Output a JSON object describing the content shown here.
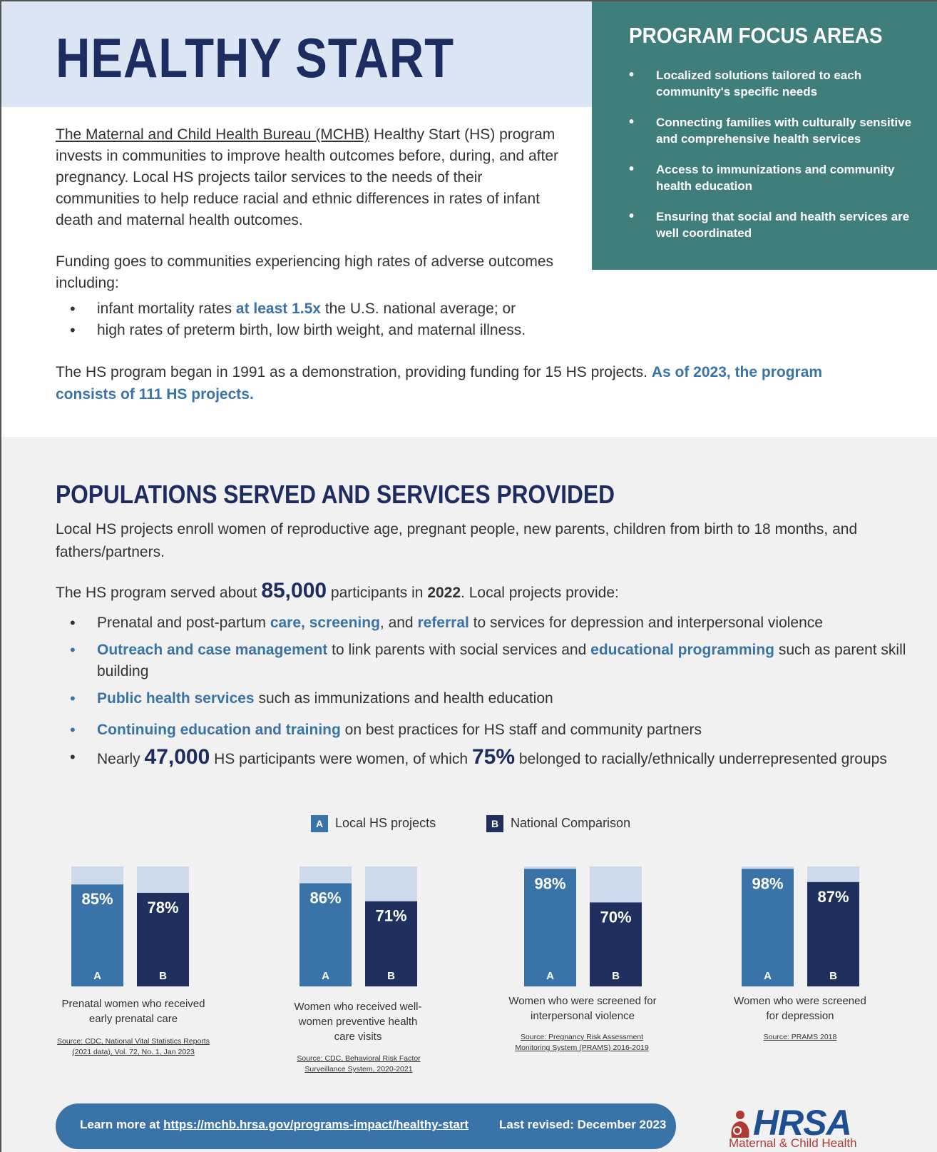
{
  "header": {
    "title": "HEALTHY START"
  },
  "focus_areas": {
    "title": "PROGRAM FOCUS AREAS",
    "items": [
      "Localized solutions tailored to each community's specific needs",
      "Connecting families with culturally sensitive and comprehensive health services",
      "Access to immunizations and community health education",
      "Ensuring that social and health services are well coordinated"
    ]
  },
  "intro": {
    "link_text": "The Maternal and Child Health Bureau (MCHB)",
    "text": " Healthy Start (HS) program invests in communities to improve health outcomes before, during, and after pregnancy. Local HS projects tailor services to the needs of their communities to help reduce racial and ethnic differences in rates of infant death and maternal health outcomes."
  },
  "funding": {
    "text": "Funding goes to communities experiencing high rates of adverse outcomes including:",
    "bullet1_pre": "infant mortality rates ",
    "bullet1_hl": "at least 1.5x",
    "bullet1_post": " the U.S. national average; or",
    "bullet2": "high rates of preterm birth, low birth weight, and maternal illness."
  },
  "history": {
    "text": "The HS program began in 1991 as a demonstration, providing funding for 15 HS projects. ",
    "highlight": "As of 2023, the program consists of 111 HS projects."
  },
  "populations": {
    "title": "POPULATIONS SERVED AND SERVICES PROVIDED",
    "enroll": "Local HS projects enroll women of reproductive age, pregnant people, new parents, children from birth to 18 months, and fathers/partners.",
    "served_pre": "The HS program served about ",
    "served_num": "85,000",
    "served_mid": " participants in ",
    "served_year": "2022",
    "served_post": ". Local projects provide:",
    "s1_pre": "Prenatal and post-partum ",
    "s1_hl1": "care, screening",
    "s1_mid": ", and ",
    "s1_hl2": "referral",
    "s1_post": " to services for depression and interpersonal violence",
    "s2_hl1": "Outreach and case management",
    "s2_mid": " to link parents with social services and ",
    "s2_hl2": "educational programming",
    "s2_post": " such as parent skill building",
    "s3_hl": "Public health services",
    "s3_post": " such as immunizations and health education",
    "s4_hl": "Continuing education and training",
    "s4_post": " on best practices for HS staff and community partners",
    "s5_pre": "Nearly ",
    "s5_num1": "47,000",
    "s5_mid": " HS participants were women, of which ",
    "s5_num2": "75%",
    "s5_post": " belonged to racially/ethnically underrepresented groups"
  },
  "legend": {
    "a_letter": "A",
    "a_label": "Local HS projects",
    "b_letter": "B",
    "b_label": "National Comparison"
  },
  "chart_data": {
    "type": "bar",
    "title": "",
    "xlabel": "",
    "ylabel": "",
    "ylim": [
      0,
      100
    ],
    "series_names": [
      "Local HS projects",
      "National Comparison"
    ],
    "series_letters": [
      "A",
      "B"
    ],
    "colors": {
      "a": "#3a73a8",
      "b": "#1f2f5e",
      "track": "#ccdaeb"
    },
    "groups": [
      {
        "label": "Prenatal women who received early prenatal care",
        "values": [
          85,
          78
        ],
        "source": "Source: CDC, National Vital Statistics Reports (2021 data), Vol. 72, No. 1, Jan 2023"
      },
      {
        "label": "Women who received well-women preventive health care visits",
        "values": [
          86,
          71
        ],
        "source": "Source: CDC, Behavioral Risk Factor Surveillance System, 2020-2021"
      },
      {
        "label": "Women who were screened for interpersonal violence",
        "values": [
          98,
          70
        ],
        "source": "Source: Pregnancy Risk Assessment Monitoring System (PRAMS) 2016-2019"
      },
      {
        "label": "Women who were screened for depression",
        "values": [
          98,
          87
        ],
        "source": "Source: PRAMS 2018"
      }
    ]
  },
  "footer": {
    "learn_prefix": "Learn more at ",
    "url": "https://mchb.hrsa.gov/programs-impact/healthy-start",
    "revised": "Last revised: December 2023"
  },
  "logo": {
    "word": "HRSA",
    "subtitle": "Maternal & Child Health"
  }
}
